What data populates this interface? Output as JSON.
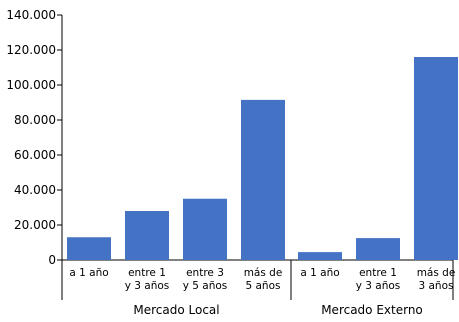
{
  "chart_data": {
    "type": "bar",
    "title": "",
    "xlabel": "",
    "ylabel": "",
    "ylim": [
      0,
      140000
    ],
    "yticks": [
      0,
      20000,
      40000,
      60000,
      80000,
      100000,
      120000,
      140000
    ],
    "ytick_labels": [
      "0",
      "20.000",
      "40.000",
      "60.000",
      "80.000",
      "100.000",
      "120.000",
      "140.000"
    ],
    "grid": false,
    "legend": "none",
    "bar_color": "#4472C4",
    "groups": [
      {
        "label": "Mercado Local",
        "categories": [
          {
            "label_lines": [
              "a 1 año"
            ],
            "value": 13000
          },
          {
            "label_lines": [
              "entre 1",
              "y 3 años"
            ],
            "value": 28000
          },
          {
            "label_lines": [
              "entre 3",
              "y 5 años"
            ],
            "value": 35000
          },
          {
            "label_lines": [
              "más de",
              "5 años"
            ],
            "value": 91500
          }
        ]
      },
      {
        "label": "Mercado Externo",
        "categories": [
          {
            "label_lines": [
              "a 1 año"
            ],
            "value": 4500
          },
          {
            "label_lines": [
              "entre 1",
              "y 3 años"
            ],
            "value": 12500
          },
          {
            "label_lines": [
              "más de",
              "3 años"
            ],
            "value": 116000
          }
        ]
      }
    ]
  }
}
